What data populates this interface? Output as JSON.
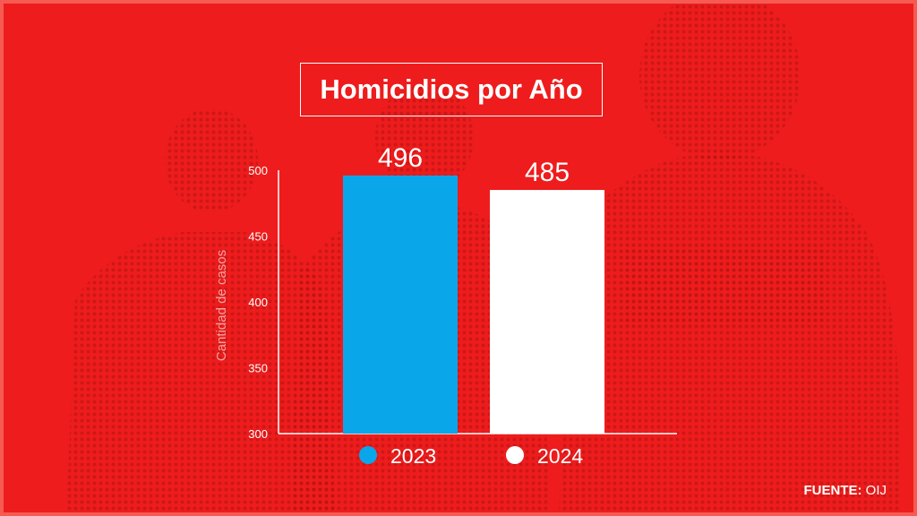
{
  "source": {
    "label": "FUENTE:",
    "value": "OIJ"
  },
  "colors": {
    "background": "#ee1c1c",
    "axis": "#ffffff"
  },
  "chart_data": {
    "type": "bar",
    "title": "Homicidios por Año",
    "xlabel": "",
    "ylabel": "Cantidad de casos",
    "ylim": [
      300,
      500
    ],
    "yticks": [
      300,
      350,
      400,
      450,
      500
    ],
    "grid": false,
    "legend": "bottom",
    "categories": [
      "2023",
      "2024"
    ],
    "values": [
      496,
      485
    ],
    "colors": [
      "#0aa6ea",
      "#ffffff"
    ]
  }
}
